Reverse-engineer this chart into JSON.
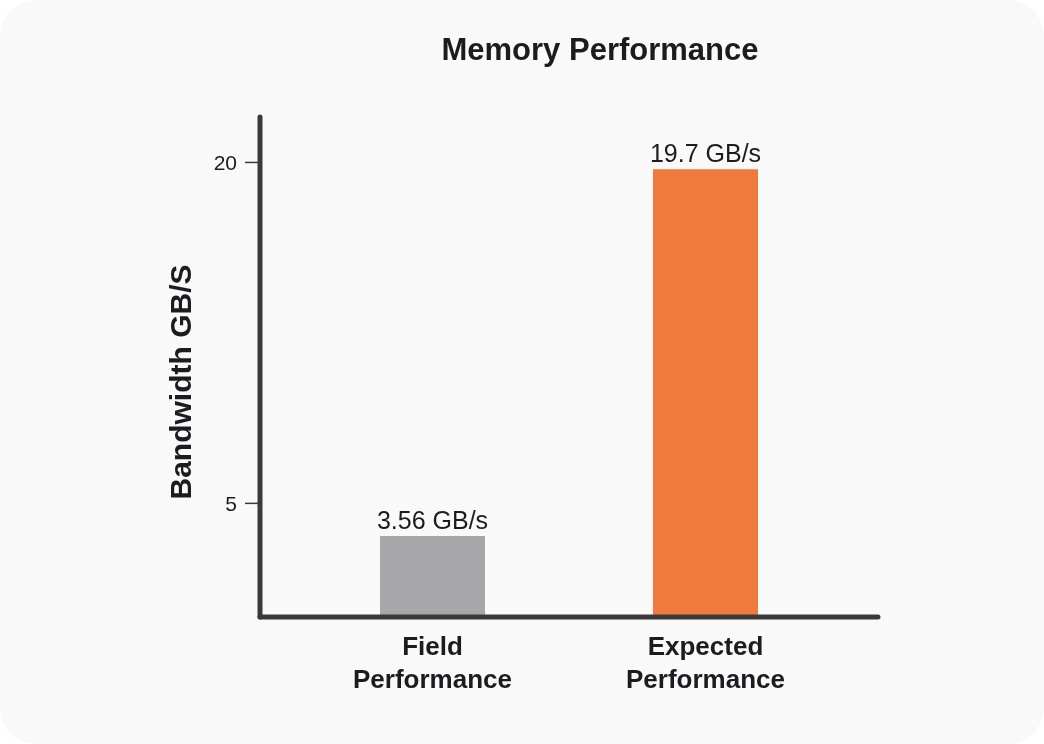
{
  "chart_data": {
    "type": "bar",
    "title": "Memory Performance",
    "ylabel": "Bandwidth GB/S",
    "categories": [
      "Field Performance",
      "Expected Performance"
    ],
    "values": [
      3.56,
      19.7
    ],
    "colors": [
      "#a7a7aa",
      "#f07a3c"
    ],
    "value_labels": [
      "3.56 GB/s",
      "19.7 GB/s"
    ],
    "ylim": [
      0,
      22
    ],
    "yticks": [
      5,
      20
    ]
  }
}
